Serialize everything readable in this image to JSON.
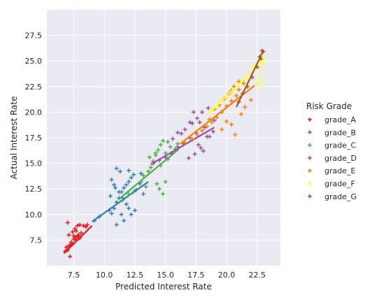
{
  "chart_data": {
    "type": "scatter",
    "xlabel": "Predicted Interest Rate",
    "ylabel": "Actual Interest Rate",
    "xlim": [
      5.3,
      24.4
    ],
    "ylim": [
      5.0,
      30.0
    ],
    "xticks": [
      "7.5",
      "10.0",
      "12.5",
      "15.0",
      "17.5",
      "20.0",
      "22.5"
    ],
    "yticks": [
      "7.5",
      "10.0",
      "12.5",
      "15.0",
      "17.5",
      "20.0",
      "22.5",
      "25.0",
      "27.5"
    ],
    "grid": true,
    "legend": {
      "title": "Risk Grade",
      "placement": "right"
    },
    "marker": "plus",
    "series": [
      {
        "name": "grade_A",
        "color": "#e41a1c",
        "points": [
          [
            6.8,
            6.4
          ],
          [
            7.0,
            6.5
          ],
          [
            7.1,
            6.9
          ],
          [
            7.2,
            7.0
          ],
          [
            7.3,
            7.3
          ],
          [
            7.5,
            7.6
          ],
          [
            7.6,
            7.8
          ],
          [
            7.7,
            7.5
          ],
          [
            7.8,
            7.9
          ],
          [
            7.9,
            8.0
          ],
          [
            8.0,
            7.7
          ],
          [
            7.4,
            8.3
          ],
          [
            7.6,
            8.6
          ],
          [
            7.8,
            8.9
          ],
          [
            8.0,
            9.0
          ],
          [
            8.3,
            8.9
          ],
          [
            8.6,
            9.0
          ],
          [
            7.0,
            9.2
          ],
          [
            7.2,
            5.9
          ],
          [
            6.9,
            6.8
          ],
          [
            7.4,
            7.1
          ],
          [
            7.9,
            7.7
          ],
          [
            8.1,
            8.2
          ],
          [
            7.5,
            7.9
          ],
          [
            7.7,
            8.4
          ],
          [
            8.5,
            8.8
          ],
          [
            7.1,
            8.0
          ]
        ],
        "fit": [
          [
            6.7,
            6.2
          ],
          [
            9.0,
            8.9
          ]
        ]
      },
      {
        "name": "grade_B",
        "color": "#377eb8",
        "points": [
          [
            9.2,
            9.4
          ],
          [
            9.6,
            9.8
          ],
          [
            10.4,
            10.4
          ],
          [
            10.6,
            10.1
          ],
          [
            10.8,
            10.6
          ],
          [
            11.0,
            11.2
          ],
          [
            11.2,
            11.6
          ],
          [
            11.4,
            12.2
          ],
          [
            11.6,
            12.6
          ],
          [
            11.8,
            12.9
          ],
          [
            12.0,
            13.2
          ],
          [
            12.2,
            13.6
          ],
          [
            12.4,
            13.9
          ],
          [
            12.0,
            14.3
          ],
          [
            11.0,
            14.5
          ],
          [
            11.3,
            14.2
          ],
          [
            10.6,
            13.4
          ],
          [
            10.8,
            12.9
          ],
          [
            11.2,
            12.2
          ],
          [
            11.5,
            11.6
          ],
          [
            11.8,
            11.0
          ],
          [
            12.0,
            10.6
          ],
          [
            12.2,
            10.0
          ],
          [
            11.6,
            9.4
          ],
          [
            11.0,
            9.0
          ],
          [
            10.5,
            11.8
          ],
          [
            10.9,
            12.6
          ],
          [
            12.6,
            12.4
          ],
          [
            12.9,
            13.0
          ],
          [
            13.2,
            12.0
          ],
          [
            13.0,
            14.0
          ],
          [
            12.5,
            10.4
          ],
          [
            11.4,
            10.0
          ]
        ],
        "fit": [
          [
            9.0,
            9.3
          ],
          [
            13.6,
            13.2
          ]
        ]
      },
      {
        "name": "grade_C",
        "color": "#4daf4a",
        "points": [
          [
            11.5,
            11.4
          ],
          [
            12.0,
            12.0
          ],
          [
            12.4,
            12.2
          ],
          [
            13.0,
            13.2
          ],
          [
            13.2,
            13.8
          ],
          [
            13.6,
            14.2
          ],
          [
            13.8,
            14.6
          ],
          [
            14.0,
            15.2
          ],
          [
            14.2,
            15.8
          ],
          [
            14.4,
            16.3
          ],
          [
            14.6,
            16.8
          ],
          [
            14.8,
            17.2
          ],
          [
            15.2,
            17.1
          ],
          [
            15.4,
            16.6
          ],
          [
            15.0,
            16.0
          ],
          [
            14.3,
            13.0
          ],
          [
            14.5,
            12.5
          ],
          [
            14.8,
            12.0
          ],
          [
            15.0,
            13.2
          ],
          [
            13.7,
            15.6
          ],
          [
            14.2,
            16.0
          ],
          [
            13.4,
            12.7
          ],
          [
            14.6,
            14.8
          ],
          [
            15.2,
            15.4
          ],
          [
            15.5,
            15.9
          ],
          [
            15.8,
            16.4
          ],
          [
            16.0,
            16.9
          ]
        ],
        "fit": [
          [
            11.3,
            11.6
          ],
          [
            16.1,
            16.4
          ]
        ]
      },
      {
        "name": "grade_D",
        "color": "#984ea3",
        "points": [
          [
            14.0,
            15.0
          ],
          [
            14.5,
            15.3
          ],
          [
            15.0,
            15.6
          ],
          [
            15.5,
            16.0
          ],
          [
            16.0,
            16.6
          ],
          [
            16.5,
            16.9
          ],
          [
            17.0,
            17.5
          ],
          [
            17.5,
            18.0
          ],
          [
            17.2,
            18.9
          ],
          [
            17.6,
            19.4
          ],
          [
            18.0,
            20.0
          ],
          [
            17.8,
            19.0
          ],
          [
            18.2,
            18.5
          ],
          [
            18.4,
            17.6
          ],
          [
            17.9,
            16.5
          ],
          [
            17.4,
            15.9
          ],
          [
            16.9,
            15.5
          ],
          [
            16.3,
            17.9
          ],
          [
            16.6,
            18.3
          ],
          [
            17.0,
            19.0
          ],
          [
            17.3,
            20.0
          ],
          [
            17.7,
            16.8
          ],
          [
            18.1,
            16.2
          ],
          [
            18.6,
            17.6
          ],
          [
            18.9,
            18.1
          ],
          [
            19.0,
            19.2
          ],
          [
            18.5,
            20.4
          ],
          [
            16.0,
            18.0
          ],
          [
            15.6,
            17.4
          ]
        ],
        "fit": [
          [
            13.8,
            14.9
          ],
          [
            19.0,
            18.5
          ]
        ]
      },
      {
        "name": "grade_E",
        "color": "#ff7f00",
        "points": [
          [
            16.6,
            17.0
          ],
          [
            17.2,
            17.3
          ],
          [
            17.6,
            17.8
          ],
          [
            18.0,
            18.2
          ],
          [
            18.4,
            18.6
          ],
          [
            18.8,
            19.0
          ],
          [
            19.2,
            19.5
          ],
          [
            19.6,
            20.0
          ],
          [
            20.0,
            20.6
          ],
          [
            20.4,
            21.1
          ],
          [
            20.8,
            21.6
          ],
          [
            21.0,
            22.2
          ],
          [
            21.4,
            22.8
          ],
          [
            21.0,
            23.0
          ],
          [
            20.6,
            22.5
          ],
          [
            20.2,
            21.8
          ],
          [
            19.8,
            21.3
          ],
          [
            19.4,
            20.7
          ],
          [
            19.0,
            20.3
          ],
          [
            20.0,
            19.1
          ],
          [
            20.4,
            18.8
          ],
          [
            19.6,
            18.3
          ],
          [
            21.5,
            20.5
          ],
          [
            21.2,
            19.8
          ],
          [
            20.7,
            17.8
          ],
          [
            18.6,
            19.3
          ],
          [
            20.4,
            22.1
          ],
          [
            22.0,
            21.2
          ]
        ],
        "fit": [
          [
            16.2,
            16.9
          ],
          [
            22.3,
            22.6
          ]
        ]
      },
      {
        "name": "grade_F",
        "color": "#ffff33",
        "points": [
          [
            18.6,
            20.0
          ],
          [
            19.0,
            20.5
          ],
          [
            19.5,
            21.0
          ],
          [
            20.0,
            21.5
          ],
          [
            20.5,
            22.0
          ],
          [
            21.0,
            22.6
          ],
          [
            21.5,
            23.2
          ],
          [
            22.0,
            23.8
          ],
          [
            22.4,
            24.4
          ],
          [
            22.8,
            25.0
          ],
          [
            23.0,
            25.4
          ],
          [
            22.9,
            24.2
          ],
          [
            22.7,
            23.6
          ],
          [
            23.0,
            23.1
          ],
          [
            22.5,
            22.8
          ],
          [
            22.8,
            22.4
          ],
          [
            23.0,
            24.8
          ],
          [
            21.8,
            22.9
          ],
          [
            22.2,
            24.6
          ]
        ],
        "fit": [
          [
            18.5,
            19.8
          ],
          [
            23.1,
            25.2
          ]
        ]
      },
      {
        "name": "grade_G",
        "color": "#a65628",
        "points": [
          [
            21.0,
            21.0
          ],
          [
            21.3,
            21.8
          ],
          [
            21.7,
            22.5
          ],
          [
            22.1,
            23.4
          ],
          [
            22.5,
            24.4
          ],
          [
            22.8,
            25.2
          ],
          [
            23.0,
            25.9
          ],
          [
            22.9,
            26.0
          ],
          [
            22.7,
            25.4
          ]
        ],
        "fit": [
          [
            20.8,
            20.5
          ],
          [
            23.0,
            26.0
          ]
        ]
      }
    ]
  }
}
